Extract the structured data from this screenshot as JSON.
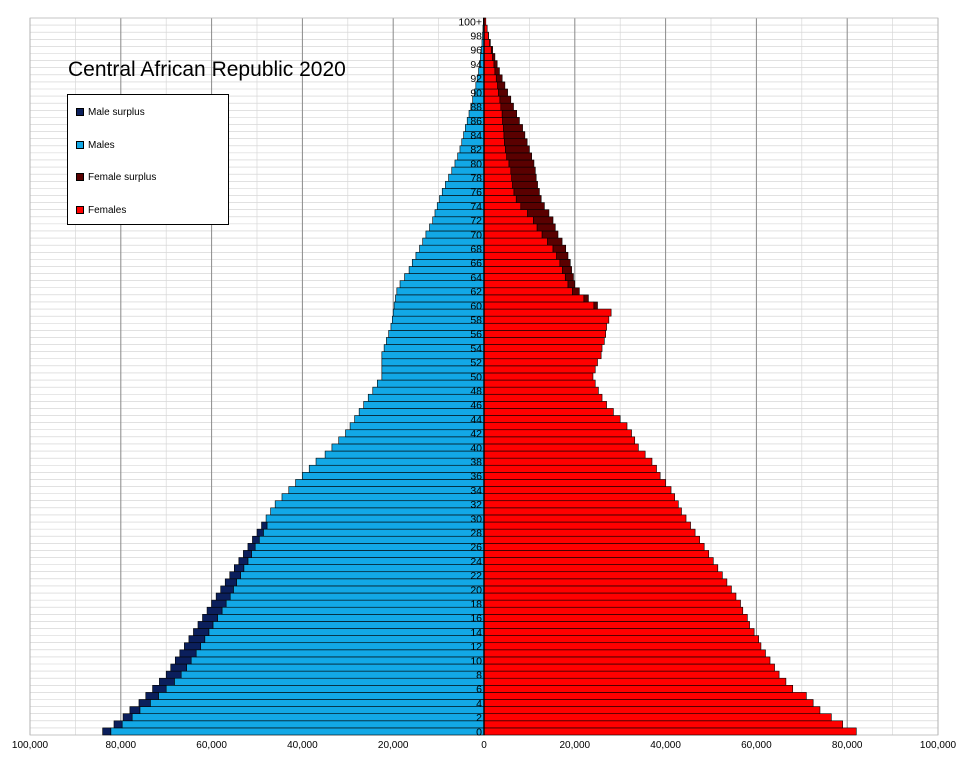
{
  "chart_data": {
    "type": "bar",
    "title": "Central African Republic 2020",
    "orientation": "horizontal-pyramid",
    "x_tick_labels": [
      "100,000",
      "80,000",
      "60,000",
      "40,000",
      "20,000",
      "0",
      "20,000",
      "40,000",
      "60,000",
      "80,000",
      "100,000"
    ],
    "xlim": [
      -100000,
      100000
    ],
    "age_labels": [
      "0",
      "2",
      "4",
      "6",
      "8",
      "10",
      "12",
      "14",
      "16",
      "18",
      "20",
      "22",
      "24",
      "26",
      "28",
      "30",
      "32",
      "34",
      "36",
      "38",
      "40",
      "42",
      "44",
      "46",
      "48",
      "50",
      "52",
      "54",
      "56",
      "58",
      "60",
      "62",
      "64",
      "66",
      "68",
      "70",
      "72",
      "74",
      "76",
      "78",
      "80",
      "82",
      "84",
      "86",
      "88",
      "90",
      "92",
      "94",
      "96",
      "98",
      "100+"
    ],
    "age_groups": 101,
    "legend": {
      "placement": "top-left",
      "items": [
        {
          "label": "Male surplus",
          "color": "#0b1f5c"
        },
        {
          "label": "Males",
          "color": "#12a8e6"
        },
        {
          "label": "Female surplus",
          "color": "#5a0000"
        },
        {
          "label": "Females",
          "color": "#ff0000"
        }
      ]
    },
    "series": [
      {
        "name": "Males",
        "values": [
          84000,
          81500,
          79500,
          78000,
          76000,
          74500,
          73000,
          71500,
          70000,
          69000,
          68000,
          67000,
          66000,
          65000,
          64000,
          63000,
          62000,
          61000,
          60000,
          59000,
          58000,
          57000,
          56000,
          55000,
          54000,
          53000,
          52000,
          51000,
          50000,
          49000,
          48000,
          47000,
          46000,
          44500,
          43000,
          41500,
          40000,
          38500,
          37000,
          35000,
          33500,
          32000,
          30500,
          29500,
          28500,
          27500,
          26500,
          25500,
          24500,
          23500,
          22500,
          22500,
          22500,
          22500,
          22000,
          21500,
          21000,
          20500,
          20200,
          20000,
          19800,
          19500,
          19200,
          18500,
          17500,
          16500,
          15800,
          15000,
          14200,
          13500,
          12800,
          12000,
          11300,
          10800,
          10300,
          9800,
          9200,
          8500,
          7800,
          7100,
          6400,
          5800,
          5300,
          4900,
          4500,
          4100,
          3700,
          3300,
          2900,
          2500,
          2100,
          1800,
          1500,
          1200,
          1000,
          800,
          600,
          450,
          330,
          230,
          150
        ]
      },
      {
        "name": "Females",
        "values": [
          82000,
          79000,
          76500,
          74000,
          72500,
          71000,
          68000,
          66500,
          65000,
          64000,
          63000,
          62000,
          61000,
          60500,
          59500,
          58500,
          58000,
          57000,
          56500,
          55500,
          54500,
          53500,
          52500,
          51500,
          50500,
          49500,
          48500,
          47500,
          46500,
          45500,
          44500,
          43500,
          42800,
          42000,
          41200,
          40000,
          38800,
          38000,
          37000,
          35500,
          34000,
          33200,
          32500,
          31500,
          30000,
          28500,
          27000,
          26000,
          25200,
          24500,
          24000,
          24500,
          25000,
          25800,
          26000,
          26500,
          26800,
          27000,
          27500,
          28000,
          25000,
          23000,
          21000,
          20000,
          19700,
          19300,
          19000,
          18500,
          18000,
          17200,
          16300,
          15700,
          15200,
          14300,
          13300,
          12600,
          12200,
          11800,
          11500,
          11300,
          11000,
          10500,
          10000,
          9500,
          9000,
          8500,
          7800,
          7200,
          6500,
          5900,
          5200,
          4600,
          4000,
          3400,
          2900,
          2400,
          1900,
          1400,
          1000,
          700,
          400
        ]
      },
      {
        "name": "Male surplus",
        "values": [
          1800,
          1800,
          2000,
          2200,
          2500,
          2800,
          3000,
          3300,
          3300,
          3500,
          3500,
          3600,
          3600,
          3500,
          3400,
          3300,
          3300,
          3300,
          3200,
          3100,
          2800,
          2500,
          2400,
          2100,
          2000,
          1800,
          1600,
          1500,
          1400,
          1200,
          0,
          0,
          0,
          0,
          0,
          0,
          0,
          0,
          0,
          0,
          0,
          0,
          0,
          0,
          0,
          0,
          0,
          0,
          0,
          0,
          0,
          0,
          0,
          0,
          0,
          0,
          0,
          0,
          0,
          0,
          0,
          0,
          0,
          0,
          0,
          0,
          0,
          0,
          0,
          0,
          0,
          0,
          0,
          0,
          0,
          0,
          0,
          0,
          0,
          0,
          0,
          0,
          0,
          0,
          0,
          0,
          0,
          0,
          0,
          0,
          0,
          0,
          0,
          0,
          0,
          0,
          0,
          0,
          0,
          0,
          0
        ]
      },
      {
        "name": "Female surplus",
        "values": [
          0,
          0,
          0,
          0,
          0,
          0,
          0,
          0,
          0,
          0,
          0,
          0,
          0,
          0,
          0,
          0,
          0,
          0,
          0,
          0,
          0,
          0,
          0,
          0,
          0,
          0,
          0,
          0,
          0,
          0,
          0,
          0,
          0,
          0,
          0,
          0,
          0,
          0,
          0,
          0,
          0,
          0,
          0,
          0,
          0,
          0,
          0,
          0,
          0,
          0,
          0,
          0,
          0,
          0,
          0,
          0,
          0,
          0,
          0,
          0,
          800,
          1000,
          1500,
          1500,
          1800,
          2000,
          2300,
          2500,
          2800,
          3200,
          3500,
          4000,
          4300,
          4700,
          5200,
          5500,
          5600,
          5500,
          5400,
          5400,
          5500,
          5500,
          5300,
          5000,
          4600,
          4200,
          3700,
          3200,
          2800,
          2400,
          2000,
          1600,
          1300,
          1000,
          700,
          500,
          300,
          150,
          50,
          0,
          0
        ]
      }
    ],
    "grid": true
  }
}
